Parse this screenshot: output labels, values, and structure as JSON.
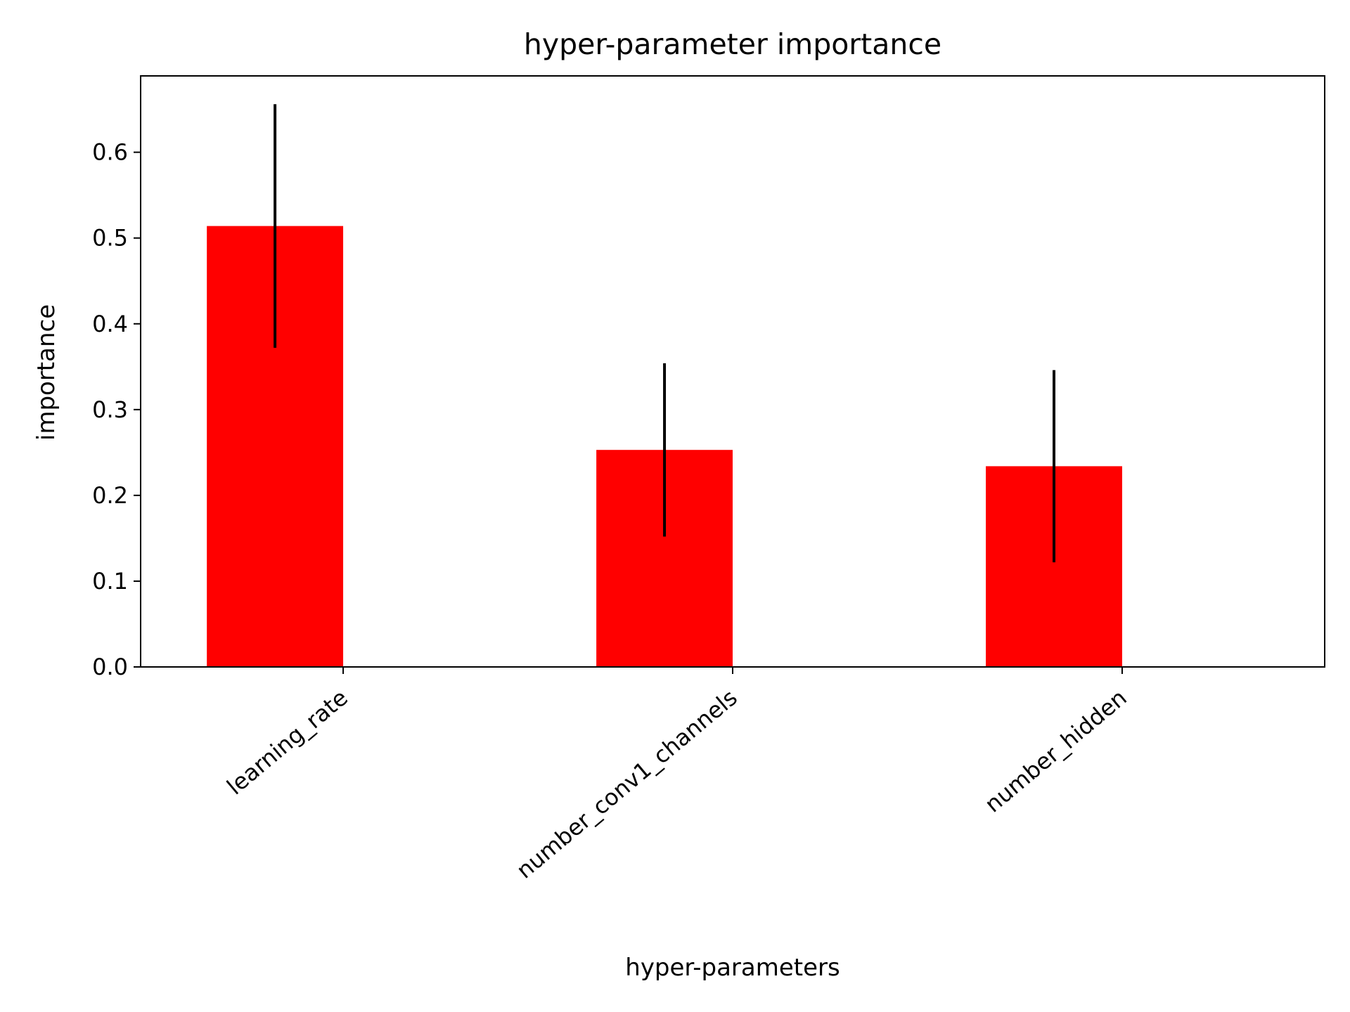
{
  "chart_data": {
    "type": "bar",
    "title": "hyper-parameter importance",
    "xlabel": "hyper-parameters",
    "ylabel": "importance",
    "categories": [
      "learning_rate",
      "number_conv1_channels",
      "number_hidden"
    ],
    "values": [
      0.514,
      0.253,
      0.234
    ],
    "error": [
      0.142,
      0.101,
      0.112
    ],
    "ylim": [
      0,
      0.689
    ],
    "yticks": [
      0.0,
      0.1,
      0.2,
      0.3,
      0.4,
      0.5,
      0.6
    ],
    "ytick_labels": [
      "0.0",
      "0.1",
      "0.2",
      "0.3",
      "0.4",
      "0.5",
      "0.6"
    ],
    "bar_color": "#ff0000",
    "error_color": "#000000",
    "grid": false,
    "legend": "none"
  }
}
